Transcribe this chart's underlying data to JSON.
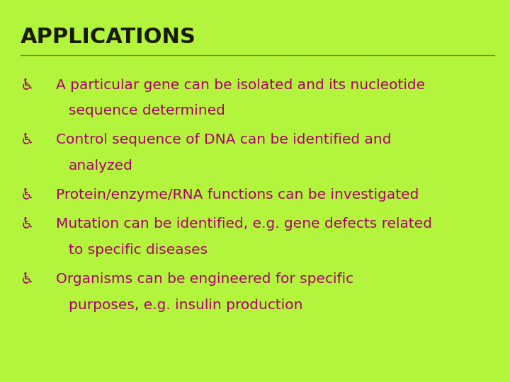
{
  "title": "APPLICATIONS",
  "title_color": "#1a1a00",
  "title_fontsize": 22,
  "title_fontweight": "bold",
  "background_color": "#b3f53c",
  "bullet_color": "#aa006a",
  "bullet_fontsize": 14.5,
  "title_underline_color": "#888800",
  "bullets": [
    [
      "A particular gene can be isolated and its nucleotide",
      "sequence determined"
    ],
    [
      "Control sequence of DNA can be identified and",
      "analyzed"
    ],
    [
      "Protein/enzyme/RNA functions can be investigated"
    ],
    [
      "Mutation can be identified, e.g. gene defects related",
      "to specific diseases"
    ],
    [
      "Organisms can be engineered for specific",
      "purposes, e.g. insulin production"
    ]
  ]
}
